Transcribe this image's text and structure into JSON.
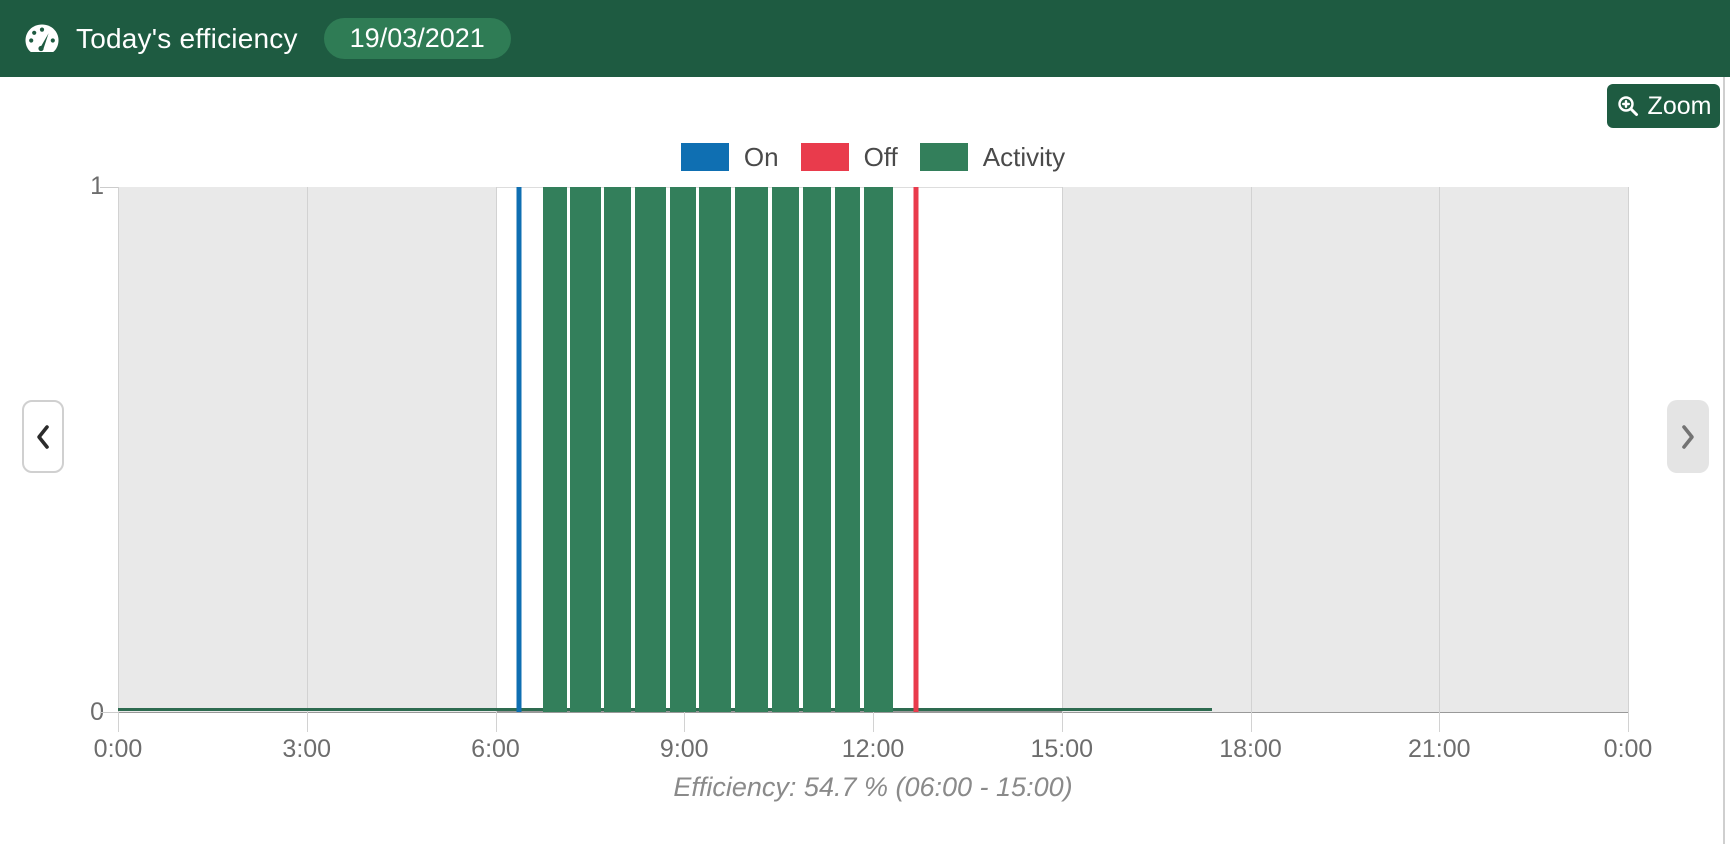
{
  "header": {
    "title": "Today's efficiency",
    "date": "19/03/2021",
    "icon": "gauge-icon"
  },
  "toolbar": {
    "zoom_label": "Zoom",
    "zoom_icon": "magnifier-plus-icon"
  },
  "nav": {
    "prev_icon": "chevron-left-icon",
    "next_icon": "chevron-right-icon"
  },
  "colors": {
    "header_bg": "#1e5b41",
    "badge_bg": "#2f7c55",
    "on": "#0f6fb2",
    "off": "#e93b4c",
    "activity": "#337f5b",
    "band": "#e9e9e9",
    "gridline": "#d2d2d2",
    "zero_line": "#2e6b50"
  },
  "chart_data": {
    "type": "bar",
    "title": "",
    "xlabel": "",
    "ylabel": "",
    "x_axis": {
      "unit": "hours",
      "range_hours": [
        0,
        24
      ],
      "tick_interval_hours": 3,
      "tick_labels": [
        "0:00",
        "3:00",
        "6:00",
        "9:00",
        "12:00",
        "15:00",
        "18:00",
        "21:00",
        "0:00"
      ],
      "grid": true
    },
    "y_axis": {
      "range": [
        0,
        1
      ],
      "tick_labels": [
        "0",
        "1"
      ],
      "grid": false
    },
    "legend": [
      {
        "label": "On",
        "color": "#0f6fb2"
      },
      {
        "label": "Off",
        "color": "#e93b4c"
      },
      {
        "label": "Activity",
        "color": "#337f5b"
      }
    ],
    "legend_position": "top-center",
    "off_hours_bands": [
      [
        0,
        6
      ],
      [
        15,
        24
      ]
    ],
    "on_marker_hour": 6.37,
    "off_marker_hour": 12.69,
    "activity_value": 1,
    "activity_intervals": [
      [
        6.75,
        7.13
      ],
      [
        7.18,
        7.67
      ],
      [
        7.73,
        8.15
      ],
      [
        8.21,
        8.71
      ],
      [
        8.77,
        9.18
      ],
      [
        9.24,
        9.74
      ],
      [
        9.8,
        10.33
      ],
      [
        10.39,
        10.83
      ],
      [
        10.89,
        11.33
      ],
      [
        11.39,
        11.8
      ],
      [
        11.86,
        12.31
      ]
    ],
    "recorded_until_hour": 17.39,
    "caption": "Efficiency: 54.7 % (06:00 - 15:00)"
  }
}
